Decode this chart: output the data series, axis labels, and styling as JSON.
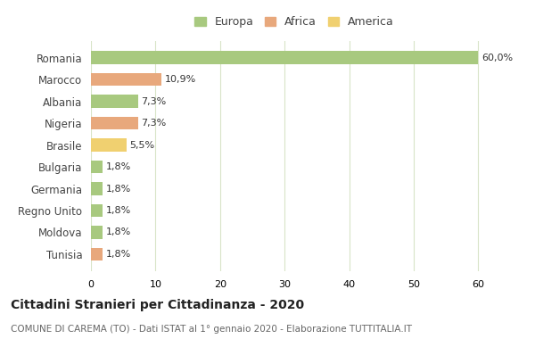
{
  "categories": [
    "Romania",
    "Marocco",
    "Albania",
    "Nigeria",
    "Brasile",
    "Bulgaria",
    "Germania",
    "Regno Unito",
    "Moldova",
    "Tunisia"
  ],
  "values": [
    60.0,
    10.9,
    7.3,
    7.3,
    5.5,
    1.8,
    1.8,
    1.8,
    1.8,
    1.8
  ],
  "labels": [
    "60,0%",
    "10,9%",
    "7,3%",
    "7,3%",
    "5,5%",
    "1,8%",
    "1,8%",
    "1,8%",
    "1,8%",
    "1,8%"
  ],
  "colors": [
    "#a8c97f",
    "#e8a87c",
    "#a8c97f",
    "#e8a87c",
    "#f0d070",
    "#a8c97f",
    "#a8c97f",
    "#a8c97f",
    "#a8c97f",
    "#e8a87c"
  ],
  "legend_labels": [
    "Europa",
    "Africa",
    "America"
  ],
  "legend_colors": [
    "#a8c97f",
    "#e8a87c",
    "#f0d070"
  ],
  "title": "Cittadini Stranieri per Cittadinanza - 2020",
  "subtitle": "COMUNE DI CAREMA (TO) - Dati ISTAT al 1° gennaio 2020 - Elaborazione TUTTITALIA.IT",
  "xlim": [
    0,
    63
  ],
  "xticks": [
    0,
    10,
    20,
    30,
    40,
    50,
    60
  ],
  "bg_color": "#ffffff",
  "grid_color": "#d8e4c8",
  "bar_height": 0.6
}
